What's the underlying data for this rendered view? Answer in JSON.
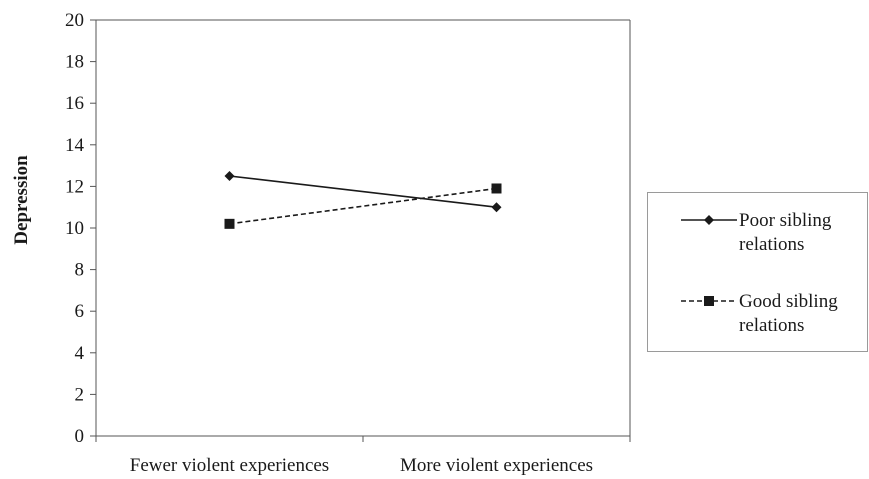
{
  "chart_data": {
    "type": "line",
    "categories": [
      "Fewer violent experiences",
      "More violent experiences"
    ],
    "ylabel": "Depression",
    "xlabel": "",
    "ylim": [
      0,
      20
    ],
    "yticks": [
      "0",
      "2",
      "4",
      "6",
      "8",
      "10",
      "12",
      "14",
      "16",
      "18",
      "20"
    ],
    "series": [
      {
        "name_lines": [
          "Poor sibling",
          "relations"
        ],
        "values": [
          12.5,
          11.0
        ],
        "marker": "diamond",
        "dash": "solid"
      },
      {
        "name_lines": [
          "Good sibling",
          "relations"
        ],
        "values": [
          10.2,
          11.9
        ],
        "marker": "square",
        "dash": "dashed"
      }
    ],
    "colors": {
      "line": "#1a1a1a",
      "axis": "#555555",
      "legend_border": "#9a9a9a"
    },
    "legend_position": "right"
  }
}
